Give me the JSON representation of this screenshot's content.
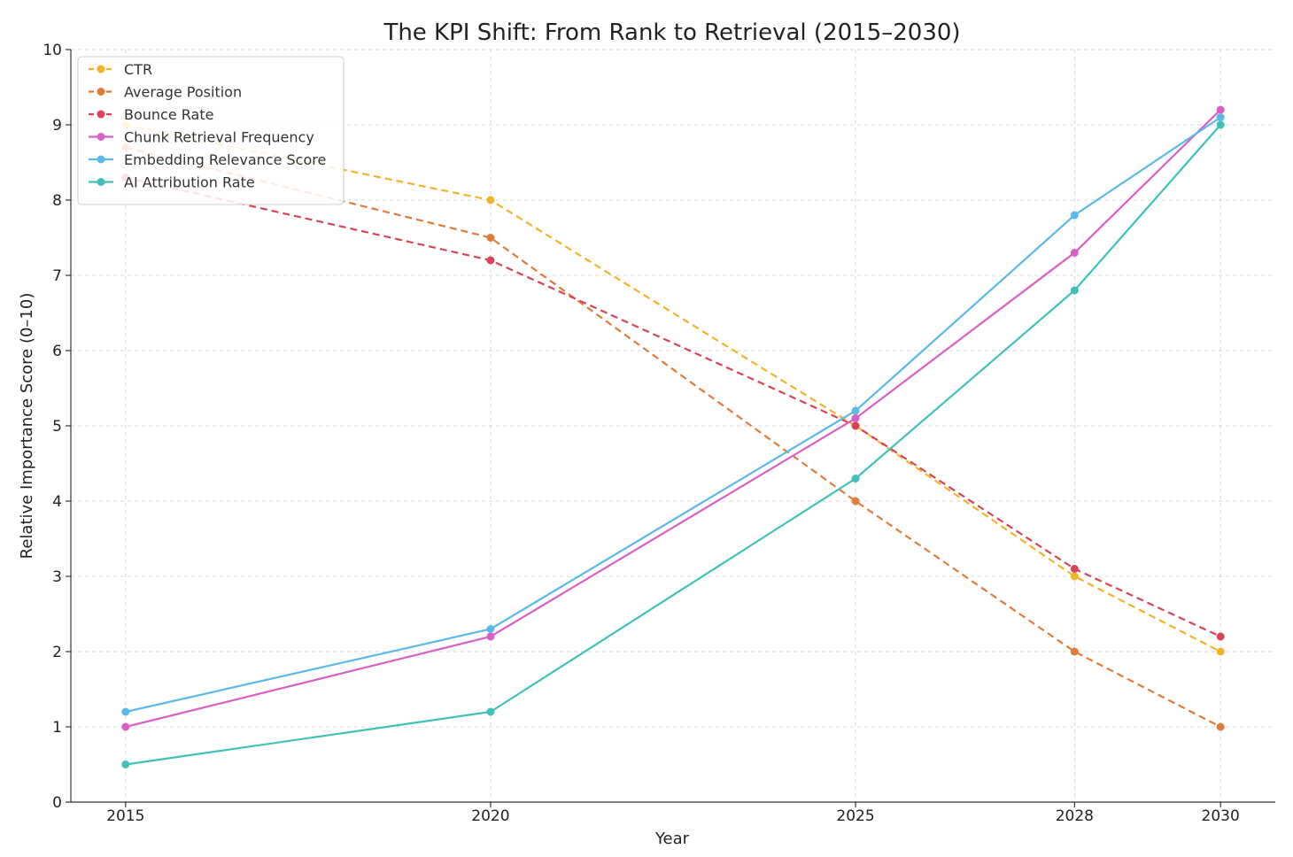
{
  "chart_data": {
    "type": "line",
    "title": "The KPI Shift: From Rank to Retrieval (2015–2030)",
    "xlabel": "Year",
    "ylabel": "Relative Importance Score (0–10)",
    "x": [
      2015,
      2020,
      2025,
      2028,
      2030
    ],
    "x_tick_labels": [
      "2015",
      "2020",
      "2025",
      "2028",
      "2030"
    ],
    "xlim": [
      2014.25,
      2030.75
    ],
    "ylim": [
      0,
      10
    ],
    "y_ticks": [
      0,
      1,
      2,
      3,
      4,
      5,
      6,
      7,
      8,
      9,
      10
    ],
    "y_tick_labels": [
      "0",
      "1",
      "2",
      "3",
      "4",
      "5",
      "6",
      "7",
      "8",
      "9",
      "10"
    ],
    "grid": true,
    "legend_position": "top-left",
    "series": [
      {
        "name": "CTR",
        "values": [
          9.0,
          8.0,
          5.0,
          3.0,
          2.0
        ],
        "color": "#f0b429",
        "dashed": true
      },
      {
        "name": "Average Position",
        "values": [
          8.7,
          7.5,
          4.0,
          2.0,
          1.0
        ],
        "color": "#e07b39",
        "dashed": true
      },
      {
        "name": "Bounce Rate",
        "values": [
          8.3,
          7.2,
          5.0,
          3.1,
          2.2
        ],
        "color": "#d9435a",
        "dashed": true
      },
      {
        "name": "Chunk Retrieval Frequency",
        "values": [
          1.0,
          2.2,
          5.1,
          7.3,
          9.2
        ],
        "color": "#d95fc5",
        "dashed": false
      },
      {
        "name": "Embedding Relevance Score",
        "values": [
          1.2,
          2.3,
          5.2,
          7.8,
          9.1
        ],
        "color": "#5bb8e8",
        "dashed": false
      },
      {
        "name": "AI Attribution Rate",
        "values": [
          0.5,
          1.2,
          4.3,
          6.8,
          9.0
        ],
        "color": "#3fc1b8",
        "dashed": false
      }
    ]
  }
}
